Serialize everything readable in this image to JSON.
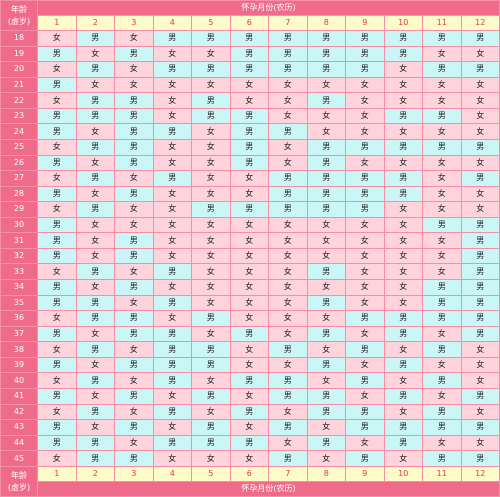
{
  "header": {
    "age_label_line1": "年龄",
    "age_label_line2": "(虚岁)",
    "title": "怀孕月份(农历)"
  },
  "footer": {
    "age_label_line1": "年龄",
    "age_label_line2": "(虚岁)",
    "title": "怀孕月份(农历)"
  },
  "months": [
    "1",
    "2",
    "3",
    "4",
    "5",
    "6",
    "7",
    "8",
    "9",
    "10",
    "11",
    "12"
  ],
  "colors": {
    "header_pink": "#f06b8a",
    "girl_cell": "#ffd3dc",
    "boy_cell": "#cbf6f6",
    "month_row": "#fdfbc7",
    "border": "#f58fa8"
  },
  "rows": [
    {
      "age": "18",
      "cells": [
        "女",
        "男",
        "女",
        "男",
        "男",
        "男",
        "男",
        "男",
        "男",
        "男",
        "男",
        "男"
      ]
    },
    {
      "age": "19",
      "cells": [
        "男",
        "女",
        "男",
        "女",
        "女",
        "男",
        "男",
        "男",
        "男",
        "男",
        "女",
        "女"
      ]
    },
    {
      "age": "20",
      "cells": [
        "女",
        "男",
        "女",
        "男",
        "男",
        "男",
        "男",
        "男",
        "男",
        "女",
        "男",
        "男"
      ]
    },
    {
      "age": "21",
      "cells": [
        "男",
        "女",
        "女",
        "女",
        "女",
        "女",
        "女",
        "女",
        "女",
        "女",
        "女",
        "女"
      ]
    },
    {
      "age": "22",
      "cells": [
        "女",
        "男",
        "男",
        "女",
        "男",
        "女",
        "女",
        "男",
        "女",
        "女",
        "女",
        "女"
      ]
    },
    {
      "age": "23",
      "cells": [
        "男",
        "男",
        "男",
        "女",
        "男",
        "男",
        "女",
        "女",
        "女",
        "男",
        "男",
        "女"
      ]
    },
    {
      "age": "24",
      "cells": [
        "男",
        "女",
        "男",
        "男",
        "女",
        "男",
        "男",
        "女",
        "女",
        "女",
        "女",
        "女"
      ]
    },
    {
      "age": "25",
      "cells": [
        "女",
        "男",
        "男",
        "女",
        "女",
        "男",
        "女",
        "男",
        "男",
        "男",
        "男",
        "男"
      ]
    },
    {
      "age": "26",
      "cells": [
        "男",
        "女",
        "男",
        "女",
        "女",
        "男",
        "女",
        "男",
        "女",
        "女",
        "女",
        "女"
      ]
    },
    {
      "age": "27",
      "cells": [
        "女",
        "男",
        "女",
        "男",
        "女",
        "女",
        "男",
        "男",
        "男",
        "男",
        "女",
        "男"
      ]
    },
    {
      "age": "28",
      "cells": [
        "男",
        "女",
        "男",
        "女",
        "女",
        "女",
        "男",
        "男",
        "男",
        "男",
        "女",
        "女"
      ]
    },
    {
      "age": "29",
      "cells": [
        "女",
        "男",
        "女",
        "女",
        "男",
        "男",
        "男",
        "男",
        "男",
        "女",
        "女",
        "女"
      ]
    },
    {
      "age": "30",
      "cells": [
        "男",
        "女",
        "女",
        "女",
        "女",
        "女",
        "女",
        "女",
        "女",
        "女",
        "男",
        "男"
      ]
    },
    {
      "age": "31",
      "cells": [
        "男",
        "女",
        "男",
        "女",
        "女",
        "女",
        "女",
        "女",
        "女",
        "女",
        "女",
        "男"
      ]
    },
    {
      "age": "32",
      "cells": [
        "男",
        "女",
        "男",
        "女",
        "女",
        "女",
        "女",
        "女",
        "女",
        "女",
        "女",
        "男"
      ]
    },
    {
      "age": "33",
      "cells": [
        "女",
        "男",
        "女",
        "男",
        "女",
        "女",
        "女",
        "男",
        "女",
        "女",
        "女",
        "男"
      ]
    },
    {
      "age": "34",
      "cells": [
        "男",
        "女",
        "男",
        "女",
        "女",
        "女",
        "女",
        "女",
        "女",
        "女",
        "男",
        "男"
      ]
    },
    {
      "age": "35",
      "cells": [
        "男",
        "男",
        "女",
        "男",
        "女",
        "女",
        "女",
        "男",
        "女",
        "女",
        "男",
        "男"
      ]
    },
    {
      "age": "36",
      "cells": [
        "女",
        "男",
        "男",
        "女",
        "男",
        "女",
        "女",
        "女",
        "男",
        "男",
        "男",
        "男"
      ]
    },
    {
      "age": "37",
      "cells": [
        "男",
        "女",
        "男",
        "男",
        "女",
        "男",
        "女",
        "男",
        "女",
        "男",
        "女",
        "男"
      ]
    },
    {
      "age": "38",
      "cells": [
        "女",
        "男",
        "女",
        "男",
        "男",
        "女",
        "男",
        "女",
        "男",
        "女",
        "男",
        "女"
      ]
    },
    {
      "age": "39",
      "cells": [
        "男",
        "女",
        "男",
        "男",
        "男",
        "女",
        "女",
        "男",
        "女",
        "男",
        "女",
        "女"
      ]
    },
    {
      "age": "40",
      "cells": [
        "女",
        "男",
        "女",
        "男",
        "女",
        "男",
        "男",
        "女",
        "男",
        "女",
        "男",
        "女"
      ]
    },
    {
      "age": "41",
      "cells": [
        "男",
        "女",
        "男",
        "女",
        "男",
        "女",
        "男",
        "男",
        "女",
        "男",
        "女",
        "男"
      ]
    },
    {
      "age": "42",
      "cells": [
        "女",
        "男",
        "女",
        "男",
        "女",
        "男",
        "女",
        "男",
        "男",
        "女",
        "男",
        "女"
      ]
    },
    {
      "age": "43",
      "cells": [
        "男",
        "女",
        "男",
        "女",
        "男",
        "女",
        "男",
        "女",
        "男",
        "男",
        "男",
        "男"
      ]
    },
    {
      "age": "44",
      "cells": [
        "男",
        "男",
        "女",
        "男",
        "男",
        "男",
        "女",
        "男",
        "女",
        "男",
        "女",
        "女"
      ]
    },
    {
      "age": "45",
      "cells": [
        "女",
        "男",
        "男",
        "女",
        "女",
        "女",
        "男",
        "女",
        "男",
        "女",
        "男",
        "男"
      ]
    }
  ]
}
